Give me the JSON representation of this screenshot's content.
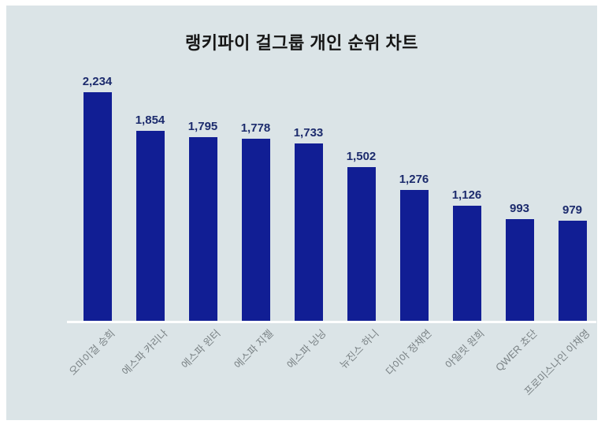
{
  "title": "랭키파이 걸그룹 개인 순위 차트",
  "colors": {
    "page_border": "#ffffff",
    "background": "#dbe4e7",
    "title_text": "#161616",
    "bar": "#111e94",
    "value_label": "#1c2b6d",
    "axis_line": "#ffffff",
    "category_label": "#7b8386"
  },
  "chart_data": {
    "type": "bar",
    "title": "랭키파이 걸그룹 개인 순위 차트",
    "categories": [
      "오마이걸 승희",
      "에스파 카리나",
      "에스파 윈터",
      "에스파 지젤",
      "에스파 닝닝",
      "뉴진스 하니",
      "다이아 정채연",
      "아일릿 원희",
      "QWER 쵸단",
      "프로미스나인 이채영"
    ],
    "values": [
      2234,
      1854,
      1795,
      1778,
      1733,
      1502,
      1276,
      1126,
      993,
      979
    ],
    "value_labels": [
      "2,234",
      "1,854",
      "1,795",
      "1,778",
      "1,733",
      "1,502",
      "1,276",
      "1,126",
      "993",
      "979"
    ],
    "xlabel": "",
    "ylabel": "",
    "ylim": [
      0,
      2300
    ],
    "grid": false,
    "legend": false,
    "bar_color": "#111e94",
    "category_label_rotation_deg": 45,
    "value_label_position": "above-bar"
  }
}
